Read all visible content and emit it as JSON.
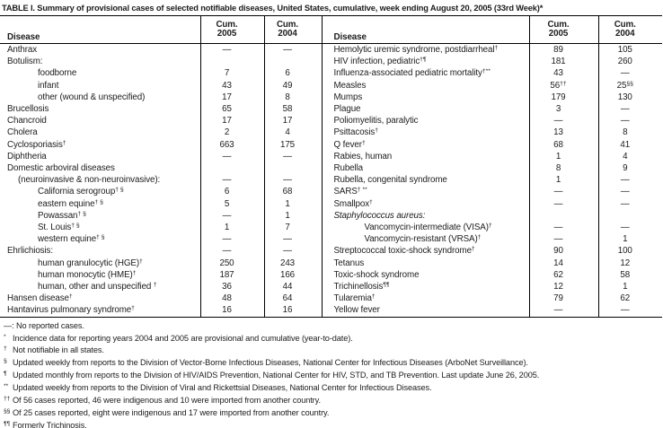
{
  "title": "TABLE I. Summary of provisional cases of selected notifiable diseases, United States, cumulative, week ending August 20, 2005 (33rd Week)*",
  "columns": {
    "disease": "Disease",
    "cum": "Cum.",
    "y2005": "2005",
    "y2004": "2004"
  },
  "colors": {
    "background": "#ffffff",
    "text": "#1c1c1c",
    "border": "#000000"
  },
  "table": {
    "left_rows": [
      {
        "label": "Anthrax",
        "indent": 0,
        "v05": "—",
        "v04": "—"
      },
      {
        "label": "Botulism:",
        "indent": 0,
        "v05": "",
        "v04": ""
      },
      {
        "label": "foodborne",
        "indent": 2,
        "v05": "7",
        "v04": "6"
      },
      {
        "label": "infant",
        "indent": 2,
        "v05": "43",
        "v04": "49"
      },
      {
        "label": "other (wound & unspecified)",
        "indent": 2,
        "v05": "17",
        "v04": "8"
      },
      {
        "label": "Brucellosis",
        "indent": 0,
        "v05": "65",
        "v04": "58"
      },
      {
        "label": "Chancroid",
        "indent": 0,
        "v05": "17",
        "v04": "17"
      },
      {
        "label": "Cholera",
        "indent": 0,
        "v05": "2",
        "v04": "4"
      },
      {
        "label": "Cyclosporiasis",
        "sup": "†",
        "indent": 0,
        "v05": "663",
        "v04": "175"
      },
      {
        "label": "Diphtheria",
        "indent": 0,
        "v05": "—",
        "v04": "—"
      },
      {
        "label": "Domestic arboviral diseases",
        "indent": 0,
        "v05": "",
        "v04": ""
      },
      {
        "label": "(neuroinvasive & non-neuroinvasive):",
        "indent": 1,
        "v05": "—",
        "v04": "—"
      },
      {
        "label": "California serogroup",
        "sup": "† §",
        "indent": 2,
        "v05": "6",
        "v04": "68"
      },
      {
        "label": "eastern equine",
        "sup": "† §",
        "indent": 2,
        "v05": "5",
        "v04": "1"
      },
      {
        "label": "Powassan",
        "sup": "† §",
        "indent": 2,
        "v05": "—",
        "v04": "1"
      },
      {
        "label": "St. Louis",
        "sup": "† §",
        "indent": 2,
        "v05": "1",
        "v04": "7"
      },
      {
        "label": "western equine",
        "sup": "† §",
        "indent": 2,
        "v05": "—",
        "v04": "—"
      },
      {
        "label": "Ehrlichiosis:",
        "indent": 0,
        "v05": "—",
        "v04": "—"
      },
      {
        "label": "human granulocytic (HGE)",
        "sup": "†",
        "indent": 2,
        "v05": "250",
        "v04": "243"
      },
      {
        "label": "human monocytic (HME)",
        "sup": "†",
        "indent": 2,
        "v05": "187",
        "v04": "166"
      },
      {
        "label": "human, other and unspecified ",
        "sup": "†",
        "indent": 2,
        "v05": "36",
        "v04": "44"
      },
      {
        "label": "Hansen disease",
        "sup": "†",
        "indent": 0,
        "v05": "48",
        "v04": "64"
      },
      {
        "label": "Hantavirus pulmonary syndrome",
        "sup": "†",
        "indent": 0,
        "v05": "16",
        "v04": "16"
      }
    ],
    "right_rows": [
      {
        "label": "Hemolytic uremic syndrome, postdiarrheal",
        "sup": "†",
        "indent": 0,
        "v05": "89",
        "v04": "105"
      },
      {
        "label": "HIV infection, pediatric",
        "sup": "†¶",
        "indent": 0,
        "v05": "181",
        "v04": "260"
      },
      {
        "label": "Influenza-associated pediatric mortality",
        "sup": "†**",
        "indent": 0,
        "v05": "43",
        "v04": "—"
      },
      {
        "label": "Measles",
        "indent": 0,
        "v05": "56",
        "v05sup": "††",
        "v04": "25",
        "v04sup": "§§"
      },
      {
        "label": "Mumps",
        "indent": 0,
        "v05": "179",
        "v04": "130"
      },
      {
        "label": "Plague",
        "indent": 0,
        "v05": "3",
        "v04": "—"
      },
      {
        "label": "Poliomyelitis, paralytic",
        "indent": 0,
        "v05": "—",
        "v04": "—"
      },
      {
        "label": "Psittacosis",
        "sup": "†",
        "indent": 0,
        "v05": "13",
        "v04": "8"
      },
      {
        "label": "Q fever",
        "sup": "†",
        "indent": 0,
        "v05": "68",
        "v04": "41"
      },
      {
        "label": "Rabies, human",
        "indent": 0,
        "v05": "1",
        "v04": "4"
      },
      {
        "label": "Rubella",
        "indent": 0,
        "v05": "8",
        "v04": "9"
      },
      {
        "label": "Rubella, congenital syndrome",
        "indent": 0,
        "v05": "1",
        "v04": "—"
      },
      {
        "label": "SARS",
        "sup": "† **",
        "indent": 0,
        "v05": "—",
        "v04": "—"
      },
      {
        "label": "Smallpox",
        "sup": "†",
        "indent": 0,
        "v05": "—",
        "v04": "—"
      },
      {
        "label": "Staphylococcus aureus:",
        "italic": true,
        "indent": 0,
        "v05": "",
        "v04": ""
      },
      {
        "label": "Vancomycin-intermediate (VISA)",
        "sup": "†",
        "indent": 2,
        "v05": "—",
        "v04": "—"
      },
      {
        "label": "Vancomycin-resistant (VRSA)",
        "sup": "†",
        "indent": 2,
        "v05": "—",
        "v04": "1"
      },
      {
        "label": "Streptococcal toxic-shock syndrome",
        "sup": "†",
        "indent": 0,
        "v05": "90",
        "v04": "100"
      },
      {
        "label": "Tetanus",
        "indent": 0,
        "v05": "14",
        "v04": "12"
      },
      {
        "label": "Toxic-shock syndrome",
        "indent": 0,
        "v05": "62",
        "v04": "58"
      },
      {
        "label": "Trichinellosis",
        "sup": "¶¶",
        "indent": 0,
        "v05": "12",
        "v04": "1"
      },
      {
        "label": "Tularemia",
        "sup": "†",
        "indent": 0,
        "v05": "79",
        "v04": "62"
      },
      {
        "label": "Yellow fever",
        "indent": 0,
        "v05": "—",
        "v04": "—"
      }
    ]
  },
  "footnotes": [
    {
      "sup": "",
      "text": "—: No reported cases."
    },
    {
      "sup": "*",
      "text": "Incidence data for reporting years 2004 and 2005 are provisional and cumulative (year-to-date)."
    },
    {
      "sup": "†",
      "text": "Not notifiable in all states."
    },
    {
      "sup": "§",
      "text": "Updated weekly from reports to the Division of Vector-Borne Infectious Diseases, National Center for Infectious Diseases (ArboNet Surveillance)."
    },
    {
      "sup": "¶",
      "text": "Updated monthly from reports to the Division of HIV/AIDS Prevention, National Center for HIV, STD, and TB Prevention. Last update June 26, 2005."
    },
    {
      "sup": "**",
      "text": "Updated weekly from reports to the Division of Viral and Rickettsial Diseases, National Center for Infectious Diseases."
    },
    {
      "sup": "††",
      "text": "Of 56 cases reported, 46 were indigenous and 10 were imported from another country."
    },
    {
      "sup": "§§",
      "text": "Of 25 cases reported, eight were indigenous and 17 were imported from another country."
    },
    {
      "sup": "¶¶",
      "text": "Formerly Trichinosis."
    }
  ]
}
